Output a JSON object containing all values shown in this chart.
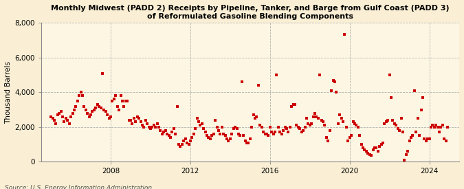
{
  "title": "Monthly Midwest (PADD 2) Receipts by Pipeline, Tanker, and Barge from Gulf Coast (PADD 3)\nof Reformulated Gasoline Blending Components",
  "ylabel": "Thousand Barrels",
  "source": "Source: U.S. Energy Information Administration",
  "background_color": "#faefd4",
  "plot_bg_color": "#fdf6e3",
  "marker_color": "#cc0000",
  "ylim": [
    0,
    8000
  ],
  "yticks": [
    0,
    2000,
    4000,
    6000,
    8000
  ],
  "xlim_start": 2004.5,
  "xlim_end": 2025.5,
  "xticks": [
    2008,
    2012,
    2016,
    2020,
    2024
  ],
  "data": [
    [
      2005.0,
      2600
    ],
    [
      2005.083,
      2500
    ],
    [
      2005.167,
      2400
    ],
    [
      2005.25,
      2200
    ],
    [
      2005.333,
      2700
    ],
    [
      2005.417,
      2800
    ],
    [
      2005.5,
      2900
    ],
    [
      2005.583,
      2600
    ],
    [
      2005.667,
      2300
    ],
    [
      2005.75,
      2500
    ],
    [
      2005.833,
      2400
    ],
    [
      2005.917,
      2200
    ],
    [
      2006.0,
      2600
    ],
    [
      2006.083,
      2800
    ],
    [
      2006.167,
      3000
    ],
    [
      2006.25,
      3200
    ],
    [
      2006.333,
      3500
    ],
    [
      2006.417,
      3800
    ],
    [
      2006.5,
      4000
    ],
    [
      2006.583,
      3800
    ],
    [
      2006.667,
      3200
    ],
    [
      2006.75,
      3000
    ],
    [
      2006.833,
      2800
    ],
    [
      2006.917,
      2600
    ],
    [
      2007.0,
      2700
    ],
    [
      2007.083,
      2900
    ],
    [
      2007.167,
      3000
    ],
    [
      2007.25,
      3100
    ],
    [
      2007.333,
      3300
    ],
    [
      2007.417,
      3200
    ],
    [
      2007.5,
      3100
    ],
    [
      2007.583,
      5100
    ],
    [
      2007.667,
      3000
    ],
    [
      2007.75,
      2900
    ],
    [
      2007.833,
      2700
    ],
    [
      2007.917,
      2500
    ],
    [
      2008.0,
      2600
    ],
    [
      2008.083,
      3500
    ],
    [
      2008.167,
      3600
    ],
    [
      2008.25,
      3800
    ],
    [
      2008.333,
      3200
    ],
    [
      2008.417,
      3000
    ],
    [
      2008.5,
      3800
    ],
    [
      2008.583,
      3500
    ],
    [
      2008.667,
      3200
    ],
    [
      2008.75,
      3500
    ],
    [
      2008.833,
      3500
    ],
    [
      2008.917,
      2400
    ],
    [
      2009.0,
      2400
    ],
    [
      2009.083,
      2200
    ],
    [
      2009.167,
      2500
    ],
    [
      2009.25,
      2300
    ],
    [
      2009.333,
      2600
    ],
    [
      2009.417,
      2500
    ],
    [
      2009.5,
      2300
    ],
    [
      2009.583,
      2100
    ],
    [
      2009.667,
      2000
    ],
    [
      2009.75,
      2400
    ],
    [
      2009.833,
      2200
    ],
    [
      2009.917,
      2000
    ],
    [
      2010.0,
      1900
    ],
    [
      2010.083,
      2000
    ],
    [
      2010.167,
      2100
    ],
    [
      2010.25,
      2000
    ],
    [
      2010.333,
      2200
    ],
    [
      2010.417,
      2000
    ],
    [
      2010.5,
      1800
    ],
    [
      2010.583,
      1600
    ],
    [
      2010.667,
      1700
    ],
    [
      2010.75,
      1800
    ],
    [
      2010.833,
      1600
    ],
    [
      2010.917,
      1500
    ],
    [
      2011.0,
      1400
    ],
    [
      2011.083,
      1700
    ],
    [
      2011.167,
      1900
    ],
    [
      2011.25,
      1600
    ],
    [
      2011.333,
      3200
    ],
    [
      2011.417,
      1000
    ],
    [
      2011.5,
      900
    ],
    [
      2011.583,
      1000
    ],
    [
      2011.667,
      1200
    ],
    [
      2011.75,
      1300
    ],
    [
      2011.833,
      1100
    ],
    [
      2011.917,
      1000
    ],
    [
      2012.0,
      1200
    ],
    [
      2012.083,
      1400
    ],
    [
      2012.167,
      1600
    ],
    [
      2012.25,
      1900
    ],
    [
      2012.333,
      2500
    ],
    [
      2012.417,
      2300
    ],
    [
      2012.5,
      2100
    ],
    [
      2012.583,
      2200
    ],
    [
      2012.667,
      1900
    ],
    [
      2012.75,
      1700
    ],
    [
      2012.833,
      1500
    ],
    [
      2012.917,
      1400
    ],
    [
      2013.0,
      1300
    ],
    [
      2013.083,
      1500
    ],
    [
      2013.167,
      1600
    ],
    [
      2013.25,
      2400
    ],
    [
      2013.333,
      2000
    ],
    [
      2013.417,
      1800
    ],
    [
      2013.5,
      1600
    ],
    [
      2013.583,
      2000
    ],
    [
      2013.667,
      1600
    ],
    [
      2013.75,
      1500
    ],
    [
      2013.833,
      1300
    ],
    [
      2013.917,
      1200
    ],
    [
      2014.0,
      1300
    ],
    [
      2014.083,
      1600
    ],
    [
      2014.167,
      1900
    ],
    [
      2014.25,
      2000
    ],
    [
      2014.333,
      1900
    ],
    [
      2014.417,
      1600
    ],
    [
      2014.5,
      1500
    ],
    [
      2014.583,
      4600
    ],
    [
      2014.667,
      1500
    ],
    [
      2014.75,
      1200
    ],
    [
      2014.833,
      1100
    ],
    [
      2014.917,
      1100
    ],
    [
      2015.0,
      1300
    ],
    [
      2015.083,
      2000
    ],
    [
      2015.167,
      2700
    ],
    [
      2015.25,
      2500
    ],
    [
      2015.333,
      2600
    ],
    [
      2015.417,
      4400
    ],
    [
      2015.5,
      2100
    ],
    [
      2015.583,
      2000
    ],
    [
      2015.667,
      1700
    ],
    [
      2015.75,
      1600
    ],
    [
      2015.833,
      1600
    ],
    [
      2015.917,
      1500
    ],
    [
      2016.0,
      2000
    ],
    [
      2016.083,
      1700
    ],
    [
      2016.167,
      1600
    ],
    [
      2016.25,
      1700
    ],
    [
      2016.333,
      5000
    ],
    [
      2016.417,
      2000
    ],
    [
      2016.5,
      1700
    ],
    [
      2016.583,
      1600
    ],
    [
      2016.667,
      1800
    ],
    [
      2016.75,
      2000
    ],
    [
      2016.833,
      1900
    ],
    [
      2016.917,
      1700
    ],
    [
      2017.0,
      2000
    ],
    [
      2017.083,
      3200
    ],
    [
      2017.167,
      3300
    ],
    [
      2017.25,
      3300
    ],
    [
      2017.333,
      2100
    ],
    [
      2017.417,
      2000
    ],
    [
      2017.5,
      1900
    ],
    [
      2017.583,
      1700
    ],
    [
      2017.667,
      1800
    ],
    [
      2017.75,
      2000
    ],
    [
      2017.833,
      2500
    ],
    [
      2017.917,
      2200
    ],
    [
      2018.0,
      2100
    ],
    [
      2018.083,
      2200
    ],
    [
      2018.167,
      2600
    ],
    [
      2018.25,
      2800
    ],
    [
      2018.333,
      2600
    ],
    [
      2018.417,
      2500
    ],
    [
      2018.5,
      5000
    ],
    [
      2018.583,
      2400
    ],
    [
      2018.667,
      2300
    ],
    [
      2018.75,
      2100
    ],
    [
      2018.833,
      1400
    ],
    [
      2018.917,
      1200
    ],
    [
      2019.0,
      1800
    ],
    [
      2019.083,
      4100
    ],
    [
      2019.167,
      4700
    ],
    [
      2019.25,
      4600
    ],
    [
      2019.333,
      4000
    ],
    [
      2019.417,
      2200
    ],
    [
      2019.5,
      2700
    ],
    [
      2019.583,
      2500
    ],
    [
      2019.667,
      2300
    ],
    [
      2019.75,
      7350
    ],
    [
      2019.833,
      2000
    ],
    [
      2019.917,
      1200
    ],
    [
      2020.0,
      1400
    ],
    [
      2020.083,
      1500
    ],
    [
      2020.167,
      2300
    ],
    [
      2020.25,
      2200
    ],
    [
      2020.333,
      2100
    ],
    [
      2020.417,
      2000
    ],
    [
      2020.5,
      1500
    ],
    [
      2020.583,
      1000
    ],
    [
      2020.667,
      800
    ],
    [
      2020.75,
      700
    ],
    [
      2020.833,
      600
    ],
    [
      2020.917,
      500
    ],
    [
      2021.0,
      400
    ],
    [
      2021.083,
      350
    ],
    [
      2021.167,
      700
    ],
    [
      2021.25,
      800
    ],
    [
      2021.333,
      800
    ],
    [
      2021.417,
      600
    ],
    [
      2021.5,
      900
    ],
    [
      2021.583,
      1000
    ],
    [
      2021.667,
      1100
    ],
    [
      2021.75,
      2200
    ],
    [
      2021.833,
      2300
    ],
    [
      2021.917,
      2400
    ],
    [
      2022.0,
      5000
    ],
    [
      2022.083,
      3700
    ],
    [
      2022.167,
      2400
    ],
    [
      2022.25,
      2200
    ],
    [
      2022.333,
      2100
    ],
    [
      2022.417,
      1900
    ],
    [
      2022.5,
      1800
    ],
    [
      2022.583,
      2500
    ],
    [
      2022.667,
      1700
    ],
    [
      2022.75,
      100
    ],
    [
      2022.833,
      400
    ],
    [
      2022.917,
      600
    ],
    [
      2023.0,
      1200
    ],
    [
      2023.083,
      1400
    ],
    [
      2023.167,
      1500
    ],
    [
      2023.25,
      4100
    ],
    [
      2023.333,
      1700
    ],
    [
      2023.417,
      2500
    ],
    [
      2023.5,
      1500
    ],
    [
      2023.583,
      3000
    ],
    [
      2023.667,
      3700
    ],
    [
      2023.75,
      1300
    ],
    [
      2023.833,
      1200
    ],
    [
      2023.917,
      1300
    ],
    [
      2024.0,
      1300
    ],
    [
      2024.083,
      2000
    ],
    [
      2024.167,
      2100
    ],
    [
      2024.25,
      2000
    ],
    [
      2024.333,
      2100
    ],
    [
      2024.417,
      2000
    ],
    [
      2024.5,
      1700
    ],
    [
      2024.583,
      2000
    ],
    [
      2024.667,
      2100
    ],
    [
      2024.75,
      1300
    ],
    [
      2024.833,
      1200
    ],
    [
      2024.917,
      2000
    ]
  ]
}
